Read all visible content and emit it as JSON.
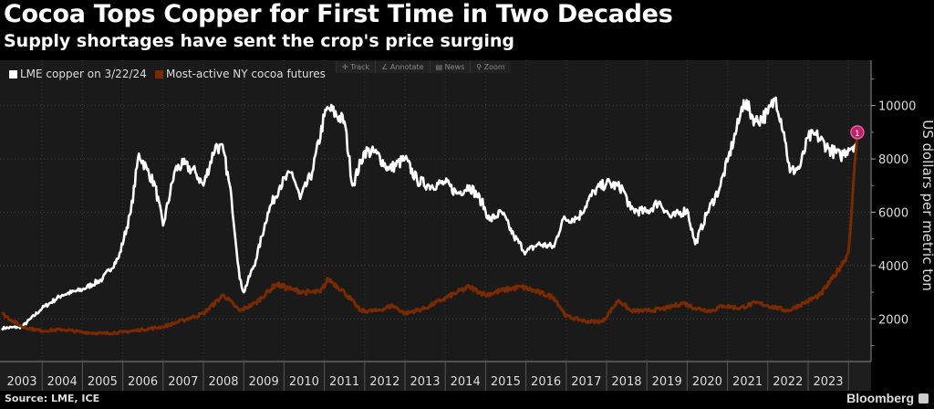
{
  "title": "Cocoa Tops Copper for First Time in Two Decades",
  "subtitle": "Supply shortages have sent the crop's price surging",
  "toolbar": [
    {
      "icon": "crosshair-icon",
      "label": "✛ Track"
    },
    {
      "icon": "pencil-icon",
      "label": "∠ Annotate"
    },
    {
      "icon": "news-icon",
      "label": "▤ News"
    },
    {
      "icon": "zoom-icon",
      "label": "⚲ Zoom"
    }
  ],
  "source": "Source: LME, ICE",
  "brand": "Bloomberg",
  "colors": {
    "copper": "#ffffff",
    "cocoa": "#7a2a00",
    "marker": "#c0206a",
    "plot_bg": "#1a1a1a",
    "axis_bg": "#1e1e1e"
  },
  "chart_data": {
    "type": "line",
    "ylabel": "US dollars per metric ton",
    "ylim": [
      400,
      11700
    ],
    "xlim": [
      2003,
      2024.55
    ],
    "yticks": [
      2000,
      4000,
      6000,
      8000,
      10000
    ],
    "ytick_labels": [
      "2000",
      "4000",
      "6000",
      "8000",
      "10000"
    ],
    "xtick_labels": [
      "2003",
      "2004",
      "2005",
      "2006",
      "2007",
      "2008",
      "2009",
      "2010",
      "2011",
      "2012",
      "2013",
      "2014",
      "2015",
      "2016",
      "2017",
      "2018",
      "2019",
      "2020",
      "2021",
      "2022",
      "2023"
    ],
    "grid": true,
    "legend_placement": "top-left",
    "series": [
      {
        "name": "LME copper on 3/22/24",
        "color": "#ffffff",
        "x": [
          2003.0,
          2003.5,
          2004.0,
          2004.5,
          2005.0,
          2005.5,
          2005.9,
          2006.2,
          2006.4,
          2006.6,
          2006.8,
          2007.0,
          2007.3,
          2007.5,
          2007.8,
          2008.0,
          2008.3,
          2008.5,
          2008.7,
          2008.9,
          2009.0,
          2009.3,
          2009.6,
          2009.9,
          2010.2,
          2010.4,
          2010.7,
          2011.0,
          2011.1,
          2011.5,
          2011.7,
          2012.0,
          2012.3,
          2012.6,
          2013.0,
          2013.3,
          2013.6,
          2014.0,
          2014.3,
          2014.6,
          2014.9,
          2015.1,
          2015.4,
          2015.7,
          2016.0,
          2016.3,
          2016.7,
          2016.9,
          2017.3,
          2017.7,
          2018.0,
          2018.4,
          2018.6,
          2019.0,
          2019.3,
          2019.6,
          2020.0,
          2020.2,
          2020.5,
          2020.8,
          2021.0,
          2021.3,
          2021.4,
          2021.7,
          2022.0,
          2022.2,
          2022.4,
          2022.55,
          2022.8,
          2023.0,
          2023.2,
          2023.5,
          2023.8,
          2024.0,
          2024.2
        ],
        "y": [
          1650,
          1700,
          2400,
          2900,
          3100,
          3500,
          4300,
          6000,
          8200,
          7600,
          7000,
          5500,
          7600,
          7800,
          7500,
          7000,
          8500,
          8300,
          6500,
          3500,
          3000,
          4200,
          6000,
          7000,
          7500,
          6500,
          7500,
          9600,
          9900,
          9400,
          7000,
          8300,
          8200,
          7600,
          8000,
          7200,
          7000,
          7100,
          6700,
          7000,
          6400,
          5700,
          6000,
          5100,
          4500,
          4800,
          4700,
          5700,
          5800,
          6800,
          7100,
          6900,
          6100,
          6000,
          6400,
          5800,
          6100,
          4800,
          6000,
          6900,
          7900,
          9500,
          10200,
          9400,
          9700,
          10300,
          9000,
          7500,
          7700,
          8800,
          8900,
          8400,
          8100,
          8400,
          8600
        ]
      },
      {
        "name": "Most-active NY cocoa futures",
        "color": "#7a2a00",
        "x": [
          2003.0,
          2003.5,
          2004.0,
          2004.5,
          2005.0,
          2005.5,
          2006.0,
          2006.5,
          2007.0,
          2007.5,
          2008.0,
          2008.5,
          2008.9,
          2009.3,
          2009.8,
          2010.2,
          2010.5,
          2010.9,
          2011.1,
          2011.5,
          2011.9,
          2012.3,
          2012.7,
          2013.0,
          2013.5,
          2013.9,
          2014.3,
          2014.6,
          2015.0,
          2015.5,
          2015.9,
          2016.3,
          2016.7,
          2017.0,
          2017.5,
          2017.9,
          2018.3,
          2018.6,
          2019.0,
          2019.5,
          2019.9,
          2020.2,
          2020.6,
          2020.9,
          2021.3,
          2021.7,
          2022.0,
          2022.5,
          2022.9,
          2023.3,
          2023.6,
          2023.9,
          2024.0,
          2024.1,
          2024.22
        ],
        "y": [
          2200,
          1700,
          1550,
          1600,
          1500,
          1450,
          1500,
          1600,
          1700,
          1950,
          2200,
          2900,
          2300,
          2600,
          3300,
          3100,
          3000,
          3000,
          3500,
          3000,
          2300,
          2300,
          2500,
          2200,
          2400,
          2700,
          3000,
          3200,
          2900,
          3100,
          3200,
          3000,
          2800,
          2100,
          1900,
          1900,
          2700,
          2300,
          2300,
          2400,
          2600,
          2400,
          2300,
          2500,
          2400,
          2600,
          2500,
          2300,
          2600,
          2900,
          3500,
          4200,
          4500,
          6500,
          9000
        ]
      }
    ],
    "annotations": [
      {
        "label": "1",
        "x": 2024.22,
        "y": 9000
      }
    ]
  }
}
